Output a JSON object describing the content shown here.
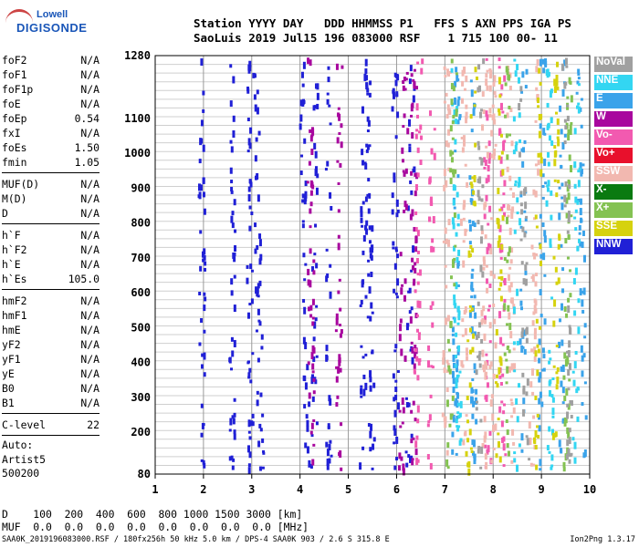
{
  "logo": {
    "line1": "Lowell",
    "line2": "DIGISONDE"
  },
  "header": {
    "labels": "Station YYYY DAY   DDD HHMMSS P1   FFS S AXN PPS IGA PS",
    "values": "SaoLuis 2019 Jul15 196 083000 RSF    1 715 100 00- 11"
  },
  "params": {
    "group1": [
      {
        "name": "foF2",
        "value": "N/A"
      },
      {
        "name": "foF1",
        "value": "N/A"
      },
      {
        "name": "foF1p",
        "value": "N/A"
      },
      {
        "name": "foE",
        "value": "N/A"
      },
      {
        "name": "foEp",
        "value": "0.54"
      },
      {
        "name": "fxI",
        "value": "N/A"
      },
      {
        "name": "foEs",
        "value": "1.50"
      },
      {
        "name": "fmin",
        "value": "1.05"
      }
    ],
    "group2": [
      {
        "name": "MUF(D)",
        "value": "N/A"
      },
      {
        "name": "M(D)",
        "value": "N/A"
      },
      {
        "name": "D",
        "value": "N/A"
      }
    ],
    "group3": [
      {
        "name": "h`F",
        "value": "N/A"
      },
      {
        "name": "h`F2",
        "value": "N/A"
      },
      {
        "name": "h`E",
        "value": "N/A"
      },
      {
        "name": "h`Es",
        "value": "105.0"
      }
    ],
    "group4": [
      {
        "name": "hmF2",
        "value": "N/A"
      },
      {
        "name": "hmF1",
        "value": "N/A"
      },
      {
        "name": "hmE",
        "value": "N/A"
      },
      {
        "name": "yF2",
        "value": "N/A"
      },
      {
        "name": "yF1",
        "value": "N/A"
      },
      {
        "name": "yE",
        "value": "N/A"
      },
      {
        "name": "B0",
        "value": "N/A"
      },
      {
        "name": "B1",
        "value": "N/A"
      }
    ],
    "group5": [
      {
        "name": "C-level",
        "value": "22"
      }
    ]
  },
  "autoscale": {
    "line1": "Auto:",
    "line2": "Artist5",
    "line3": "500200"
  },
  "legend": [
    {
      "label": "NoVal",
      "color": "#a0a0a0"
    },
    {
      "label": "NNE",
      "color": "#33d6f2"
    },
    {
      "label": "E",
      "color": "#3aa3ea"
    },
    {
      "label": "W",
      "color": "#a8079e"
    },
    {
      "label": "Vo-",
      "color": "#f25ab0"
    },
    {
      "label": "Vo+",
      "color": "#e8102c"
    },
    {
      "label": "SSW",
      "color": "#f2b8b0"
    },
    {
      "label": "X-",
      "color": "#0a7a10"
    },
    {
      "label": "X+",
      "color": "#84c252"
    },
    {
      "label": "SSE",
      "color": "#d6d20e"
    },
    {
      "label": "NNW",
      "color": "#2020d6"
    }
  ],
  "muf_table": {
    "d_row": "D    100  200  400  600  800 1000 1500 3000 [km]",
    "muf_row": "MUF  0.0  0.0  0.0  0.0  0.0  0.0  0.0  0.0 [MHz]"
  },
  "footer": {
    "file": "SAA0K_2019196083000.RSF / 180fx256h 50 kHz 5.0 km / DPS-4 SAA0K 903 / 2.6 S 315.8 E",
    "version": "Ion2Png 1.3.17"
  },
  "chart_data": {
    "type": "scatter",
    "title": "",
    "xlabel": "",
    "ylabel": "",
    "xlim": [
      1,
      10
    ],
    "ylim": [
      80,
      1280
    ],
    "x_ticks": [
      1,
      2,
      3,
      4,
      5,
      6,
      7,
      8,
      9,
      10
    ],
    "y_ticks": [
      80,
      200,
      300,
      400,
      500,
      600,
      700,
      800,
      900,
      1000,
      1100,
      1280
    ],
    "grid": true,
    "series": [
      {
        "name": "NNW",
        "color": "#2020d6",
        "x_groups": [
          2.0,
          2.6,
          3.0,
          3.2,
          4.15,
          4.3,
          4.6,
          5.3,
          5.5,
          6.0,
          6.25
        ]
      },
      {
        "name": "W",
        "color": "#a8079e",
        "x_groups": [
          4.25,
          4.8,
          6.1,
          6.35
        ]
      },
      {
        "name": "Vo-",
        "color": "#f25ab0",
        "x_groups": [
          6.4,
          6.7,
          7.9,
          8.2
        ]
      },
      {
        "name": "SSW",
        "color": "#f2b8b0",
        "x_groups": [
          7.0,
          7.4,
          7.8,
          8.0,
          8.4,
          8.8
        ]
      },
      {
        "name": "E",
        "color": "#3aa3ea",
        "x_groups": [
          7.2,
          7.6,
          8.6,
          9.0,
          9.4,
          9.9
        ]
      },
      {
        "name": "NNE",
        "color": "#33d6f2",
        "x_groups": [
          7.3,
          8.5,
          9.2,
          9.7
        ]
      },
      {
        "name": "SSE",
        "color": "#d6d20e",
        "x_groups": [
          7.5,
          8.1,
          8.9,
          9.3
        ]
      },
      {
        "name": "X+",
        "color": "#84c252",
        "x_groups": [
          7.1,
          8.3,
          9.5
        ]
      },
      {
        "name": "NoVal",
        "color": "#a0a0a0",
        "x_groups": [
          7.7,
          8.7,
          9.6
        ]
      }
    ]
  }
}
